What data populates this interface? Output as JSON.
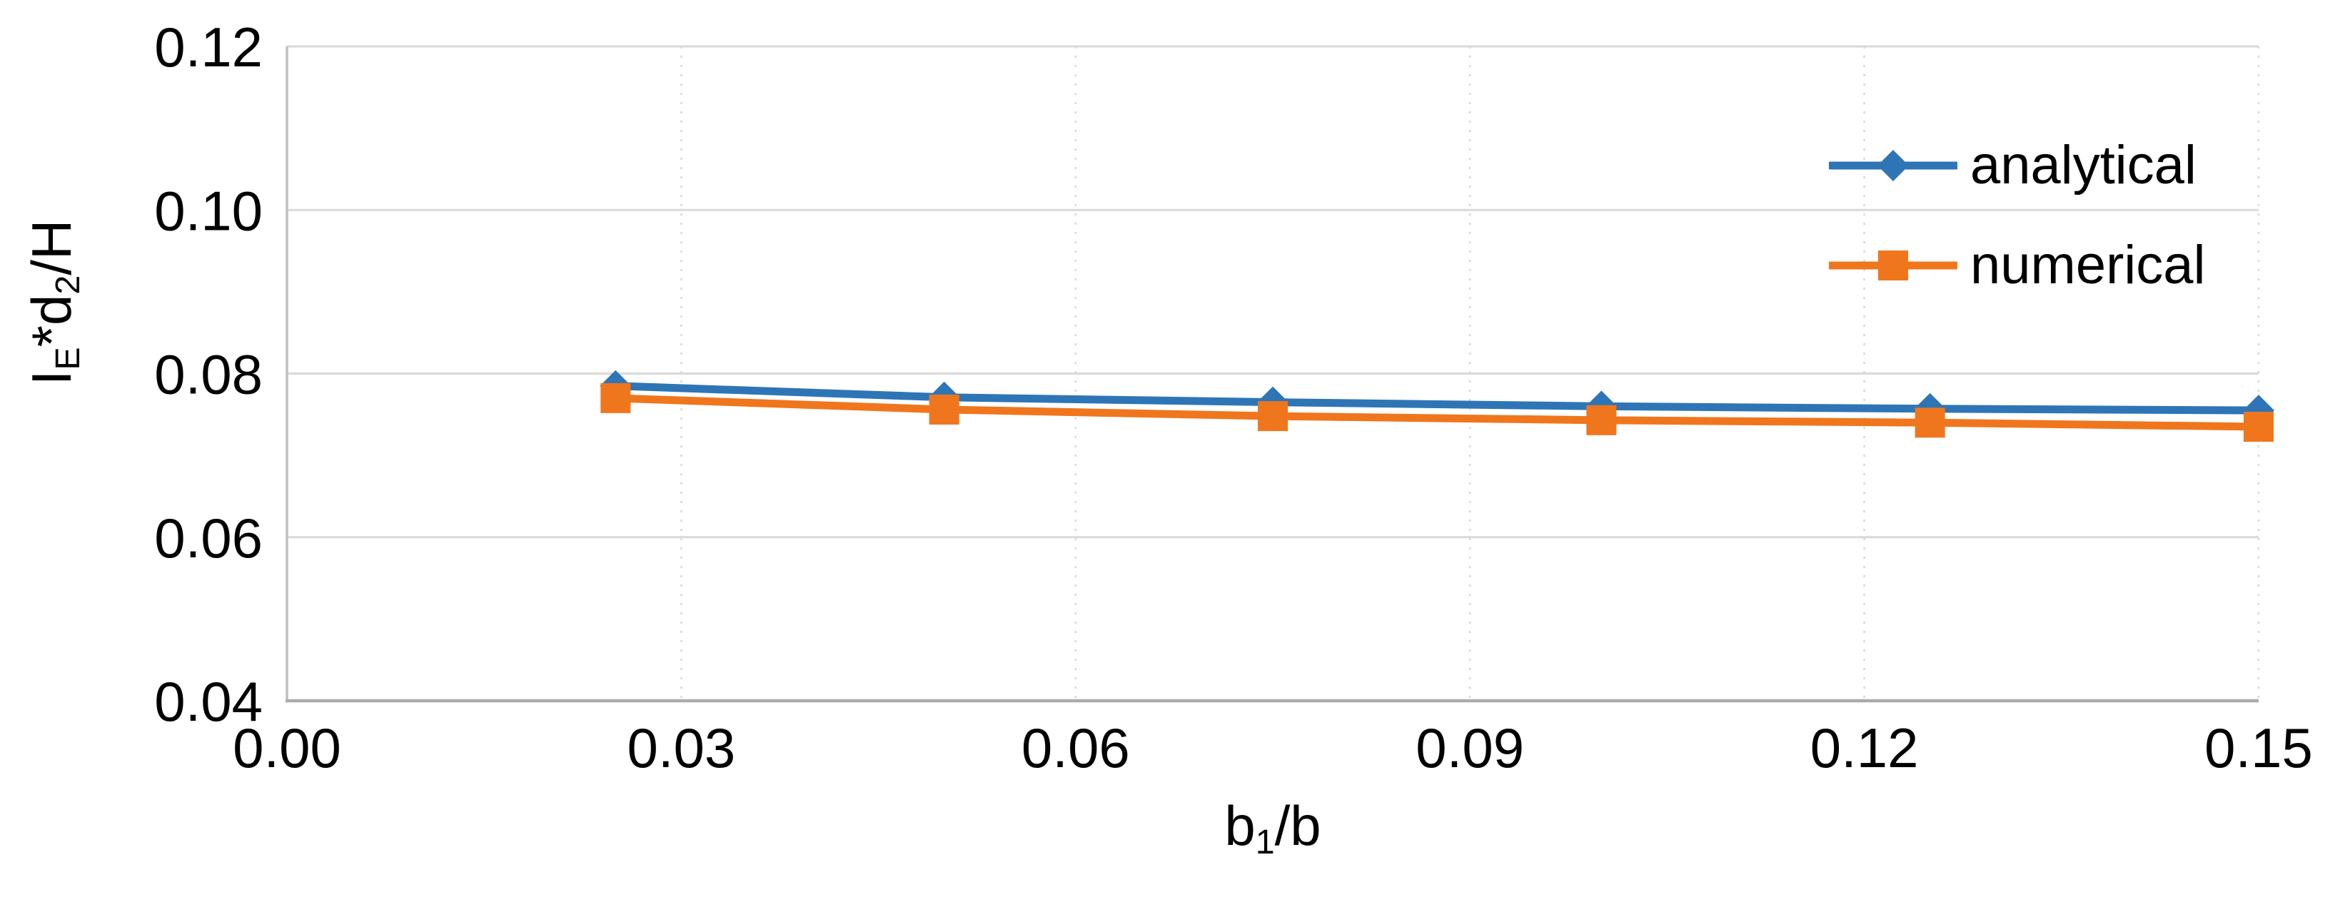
{
  "chart_data": {
    "type": "line",
    "title": "",
    "xlabel": "b1/b",
    "xlabel_parts": [
      {
        "t": "b"
      },
      {
        "t": "1",
        "sub": true
      },
      {
        "t": "/b"
      }
    ],
    "ylabel": "IE*d2/H",
    "ylabel_parts": [
      {
        "t": "I"
      },
      {
        "t": "E",
        "sub": true
      },
      {
        "t": "*d"
      },
      {
        "t": "2",
        "sub": true
      },
      {
        "t": "/H"
      }
    ],
    "xlim": [
      0.0,
      0.15
    ],
    "ylim": [
      0.04,
      0.12
    ],
    "x": [
      0.025,
      0.05,
      0.075,
      0.1,
      0.125,
      0.15
    ],
    "series": [
      {
        "name": "analytical",
        "color": "#2E75B6",
        "marker": "diamond",
        "values": [
          0.0785,
          0.0771,
          0.0765,
          0.076,
          0.0757,
          0.0755
        ]
      },
      {
        "name": "numerical",
        "color": "#F0761D",
        "marker": "square",
        "values": [
          0.077,
          0.0756,
          0.0748,
          0.0743,
          0.074,
          0.0735
        ]
      }
    ],
    "x_ticks": {
      "values": [
        0.0,
        0.03,
        0.06,
        0.09,
        0.12,
        0.15
      ],
      "labels": [
        "0.00",
        "0.03",
        "0.06",
        "0.09",
        "0.12",
        "0.15"
      ]
    },
    "y_ticks": {
      "values": [
        0.04,
        0.06,
        0.08,
        0.1,
        0.12
      ],
      "labels": [
        "0.04",
        "0.06",
        "0.08",
        "0.10",
        "0.12"
      ]
    },
    "grid": {
      "horizontal": "solid",
      "vertical": "dotted",
      "color": "#D9D9D9"
    },
    "axis_color": "#BFBFBF",
    "text_color": "#000000",
    "legend_position": "top-right-inside",
    "legend_items": [
      "analytical",
      "numerical"
    ]
  }
}
